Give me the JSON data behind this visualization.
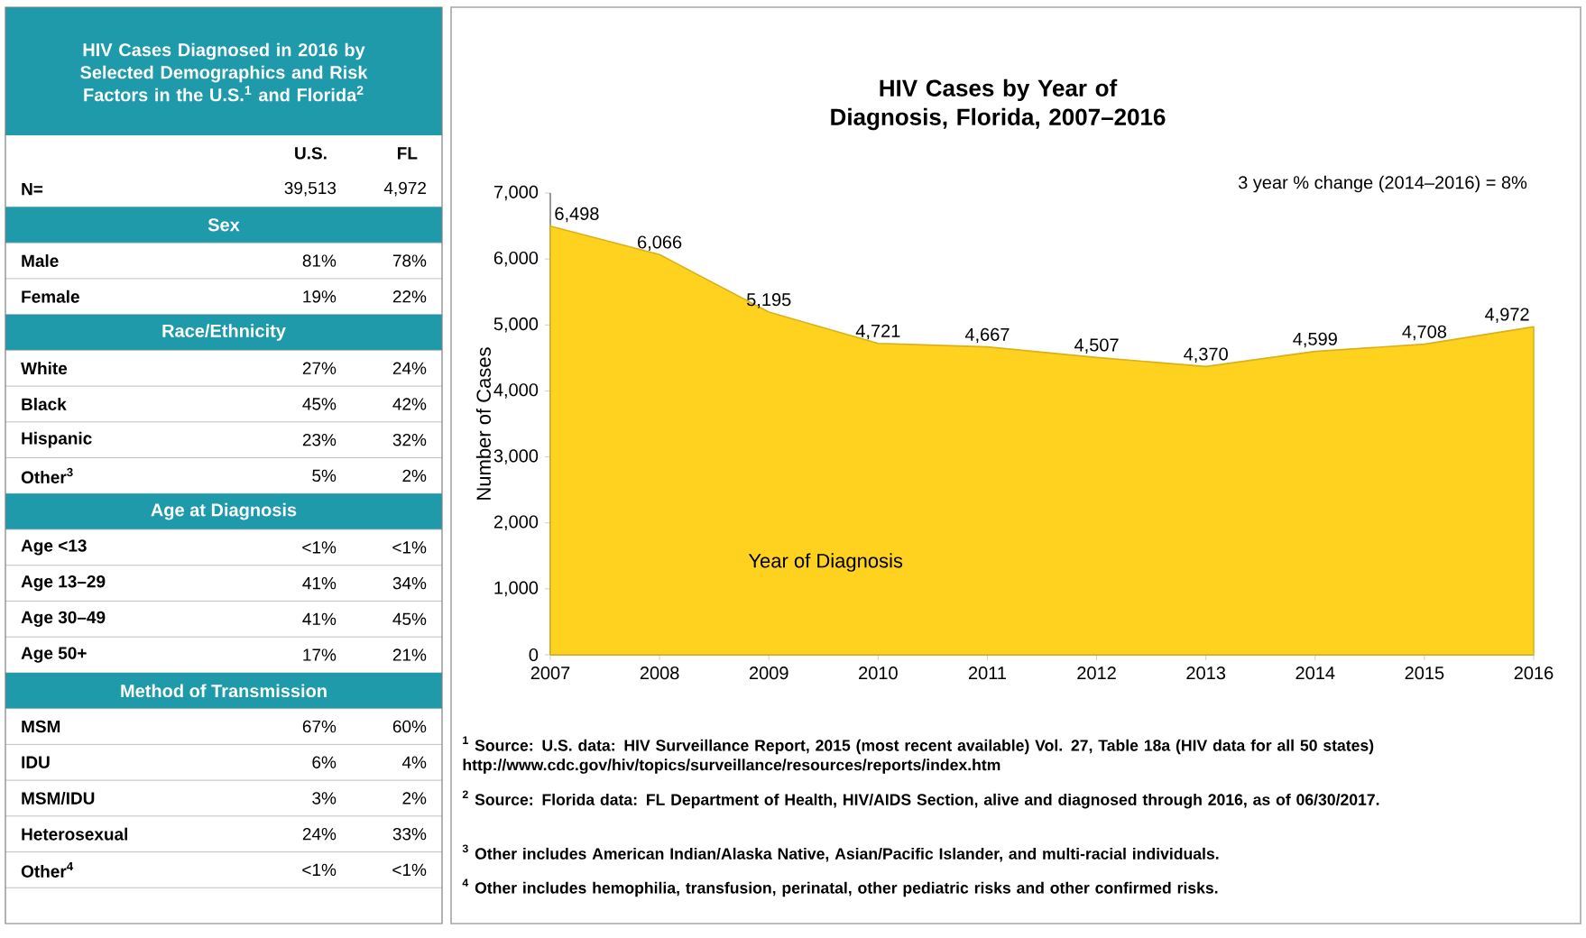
{
  "chart_data": [
    {
      "type": "other",
      "title": "HIV Cases Diagnosed in 2016  by Selected Demographics and Risk Factors in the U.S.$^{1}$ and Florida$^{2}$",
      "categories": [
        "U.S.",
        "FL"
      ],
      "y_categories": [
        "N=",
        "Sex",
        "Male",
        "Female",
        "Race/Ethnicity",
        "White",
        "Black",
        "Hispanic",
        "Other$^{3}$",
        "Age at Diagnosis",
        "Age <13",
        "Age 13–29",
        "Age 30–49",
        "Age 50+",
        "Method of Transmission",
        "MSM",
        "IDU",
        "MSM/IDU",
        "Heterosexual",
        "Other$^{4}$"
      ],
      "cell_labels": [
        [
          "39,513",
          "4,972"
        ],
        [
          null,
          null
        ],
        [
          "81%",
          "78%"
        ],
        [
          "19%",
          "22%"
        ],
        [
          null,
          null
        ],
        [
          "27%",
          "24%"
        ],
        [
          "45%",
          "42%"
        ],
        [
          "23%",
          "32%"
        ],
        [
          "5%",
          "2%"
        ],
        [
          null,
          null
        ],
        [
          "<1%",
          "<1%"
        ],
        [
          "41%",
          "34%"
        ],
        [
          "41%",
          "45%"
        ],
        [
          "17%",
          "21%"
        ],
        [
          null,
          null
        ],
        [
          "67%",
          "60%"
        ],
        [
          "6%",
          "4%"
        ],
        [
          "3%",
          "2%"
        ],
        [
          "24%",
          "33%"
        ],
        [
          "<1%",
          "<1%"
        ]
      ]
    },
    {
      "type": "area",
      "title": "HIV Cases by Year of Diagnosis, Florida, 2007–2016",
      "xlabel": "Year of Diagnosis",
      "ylabel": "Number of Cases",
      "categories": [
        "2007",
        "2008",
        "2009",
        "2010",
        "2011",
        "2012",
        "2013",
        "2014",
        "2015",
        "2016"
      ],
      "values": [
        6498,
        6066,
        5195,
        4721,
        4667,
        4507,
        4370,
        4599,
        4708,
        4972
      ],
      "value_labels": [
        "6,498",
        "6,066",
        "5,195",
        "4,721",
        "4,667",
        "4,507",
        "4,370",
        "4,599",
        "4,708",
        "4,972"
      ],
      "color": "#ffd21f",
      "ylim": [
        0,
        7000
      ],
      "yticks": [
        0,
        {
          "value": 1000,
          "label": "1,000"
        },
        {
          "value": 2000,
          "label": "2,000"
        },
        {
          "value": 3000,
          "label": "3,000"
        },
        {
          "value": 4000,
          "label": "4,000"
        },
        {
          "value": 5000,
          "label": "5,000"
        },
        {
          "value": 6000,
          "label": "6,000"
        },
        {
          "value": 7000,
          "label": "7,000"
        }
      ],
      "annotations": [
        "3 year % change (2014–2016)  = 8%",
        "$^{1}$ Source: U.S. data: HIV Surveillance Report, 2015 (most recent available)  Vol. 27, Table 18a (HIV data for all 50 states)  http://www.cdc.gov/hiv/topics/surveillance/resources/reports/index.htm",
        "$^{2}$ Source: Florida data: FL Department of Health, HIV/AIDS Section, alive and diagnosed through 2016, as of 06/30/2017.",
        "$^{3}$ Other includes American Indian/Alaska Native, Asian/Pacific Islander, and multi-racial individuals.",
        "$^{4}$ Other includes hemophilia, transfusion, perinatal, other pediatric risks and other confirmed risks."
      ]
    }
  ]
}
